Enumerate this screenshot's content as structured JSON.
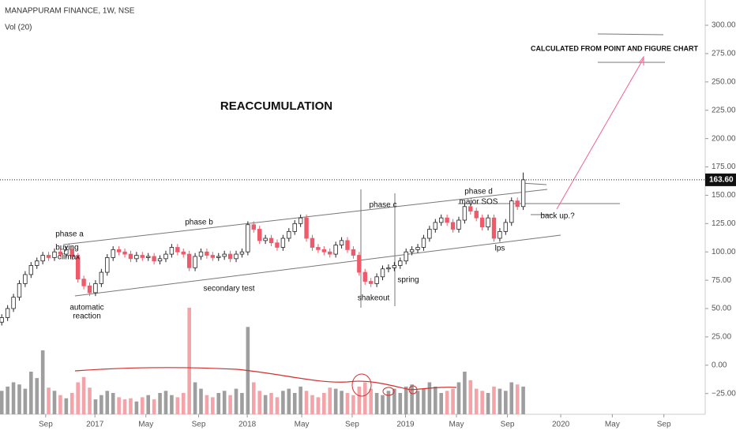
{
  "chart_data": {
    "type": "candlestick",
    "title": "MANAPPURAM FINANCE, 1W, NSE",
    "subtitle": "Vol (20)",
    "ylim": [
      -43.3,
      322.3
    ],
    "yticks": [
      {
        "value": 300,
        "label": "300.00"
      },
      {
        "value": 275,
        "label": "275.00"
      },
      {
        "value": 250,
        "label": "250.00"
      },
      {
        "value": 225,
        "label": "225.00"
      },
      {
        "value": 200,
        "label": "200.00"
      },
      {
        "value": 175,
        "label": "175.00"
      },
      {
        "value": 150,
        "label": "150.00"
      },
      {
        "value": 125,
        "label": "125.00"
      },
      {
        "value": 100,
        "label": "100.00"
      },
      {
        "value": 75,
        "label": "75.00"
      },
      {
        "value": 50,
        "label": "50.00"
      },
      {
        "value": 25,
        "label": "25.00"
      },
      {
        "value": 0,
        "label": "0.00"
      },
      {
        "value": -25,
        "label": "−25.00"
      }
    ],
    "xlim": [
      -0.3,
      118.3
    ],
    "xticks": [
      {
        "value": 7.5,
        "label": "Sep"
      },
      {
        "value": 15.9,
        "label": "2017"
      },
      {
        "value": 24.6,
        "label": "May"
      },
      {
        "value": 33.6,
        "label": "Sep"
      },
      {
        "value": 41.9,
        "label": "2018"
      },
      {
        "value": 51.2,
        "label": "May"
      },
      {
        "value": 59.8,
        "label": "Sep"
      },
      {
        "value": 68.9,
        "label": "2019"
      },
      {
        "value": 77.6,
        "label": "May"
      },
      {
        "value": 86.3,
        "label": "Sep"
      },
      {
        "value": 95.4,
        "label": "2020"
      },
      {
        "value": 104.2,
        "label": "May"
      },
      {
        "value": 113,
        "label": "Sep"
      }
    ],
    "up_color": "#ffffff",
    "down_color": "#ef5a6a",
    "vol_up_color": "#9e9e9e",
    "vol_down_color": "#f4a3a8",
    "open": [
      38,
      42,
      50,
      60,
      72,
      80,
      88,
      92,
      97,
      95,
      100,
      98,
      102,
      96,
      76,
      70,
      64,
      72,
      82,
      95,
      102,
      100,
      98,
      94,
      97,
      95,
      96,
      92,
      94,
      98,
      104,
      100,
      98,
      86,
      96,
      100,
      97,
      95,
      96,
      98,
      94,
      98,
      100,
      124,
      120,
      110,
      112,
      108,
      104,
      112,
      118,
      125,
      130,
      112,
      104,
      102,
      100,
      98,
      106,
      110,
      102,
      97,
      82,
      74,
      72,
      78,
      85,
      86,
      88,
      92,
      100,
      102,
      104,
      112,
      120,
      126,
      130,
      126,
      120,
      128,
      140,
      136,
      130,
      122,
      130,
      112,
      118,
      126,
      145,
      140
    ],
    "high": [
      45,
      53,
      63,
      75,
      83,
      91,
      95,
      100,
      100,
      103,
      103,
      105,
      105,
      99,
      79,
      73,
      75,
      85,
      98,
      105,
      105,
      103,
      101,
      100,
      100,
      99,
      99,
      97,
      101,
      107,
      107,
      103,
      101,
      99,
      103,
      103,
      100,
      99,
      101,
      101,
      101,
      103,
      127,
      127,
      123,
      115,
      115,
      111,
      115,
      121,
      128,
      133,
      133,
      115,
      107,
      105,
      103,
      109,
      113,
      113,
      105,
      100,
      85,
      77,
      81,
      88,
      89,
      91,
      95,
      103,
      105,
      107,
      115,
      123,
      129,
      133,
      133,
      129,
      131,
      143,
      143,
      139,
      133,
      133,
      133,
      121,
      129,
      148,
      148,
      170
    ],
    "low": [
      35,
      39,
      47,
      57,
      69,
      77,
      85,
      89,
      92,
      92,
      95,
      95,
      93,
      73,
      67,
      61,
      61,
      69,
      79,
      92,
      97,
      95,
      91,
      91,
      92,
      92,
      89,
      89,
      91,
      95,
      97,
      95,
      83,
      83,
      93,
      94,
      92,
      92,
      93,
      91,
      91,
      95,
      97,
      117,
      107,
      107,
      105,
      101,
      101,
      109,
      115,
      122,
      109,
      101,
      99,
      97,
      95,
      95,
      103,
      99,
      94,
      79,
      71,
      69,
      69,
      75,
      82,
      83,
      85,
      89,
      97,
      99,
      101,
      109,
      117,
      123,
      123,
      117,
      117,
      125,
      133,
      127,
      119,
      119,
      109,
      109,
      115,
      123,
      137,
      137
    ],
    "close": [
      42,
      50,
      60,
      72,
      80,
      88,
      92,
      97,
      95,
      100,
      98,
      102,
      96,
      76,
      70,
      64,
      72,
      82,
      95,
      102,
      100,
      98,
      94,
      97,
      95,
      96,
      92,
      94,
      98,
      104,
      100,
      98,
      86,
      96,
      100,
      97,
      95,
      96,
      98,
      94,
      98,
      100,
      124,
      120,
      110,
      112,
      108,
      104,
      112,
      118,
      125,
      130,
      112,
      104,
      102,
      100,
      98,
      106,
      110,
      102,
      97,
      82,
      74,
      72,
      78,
      85,
      86,
      88,
      92,
      100,
      102,
      104,
      112,
      120,
      126,
      130,
      126,
      120,
      128,
      140,
      136,
      130,
      122,
      130,
      112,
      118,
      126,
      145,
      140,
      163.6
    ],
    "volume": [
      22,
      26,
      30,
      28,
      24,
      40,
      34,
      60,
      25,
      22,
      18,
      15,
      20,
      30,
      35,
      25,
      14,
      18,
      22,
      20,
      16,
      14,
      15,
      12,
      16,
      18,
      14,
      20,
      22,
      18,
      16,
      20,
      100,
      30,
      24,
      18,
      16,
      20,
      22,
      18,
      24,
      20,
      82,
      30,
      22,
      18,
      20,
      16,
      22,
      24,
      20,
      26,
      22,
      18,
      16,
      20,
      25,
      24,
      22,
      20,
      18,
      26,
      30,
      24,
      20,
      18,
      22,
      24,
      20,
      26,
      28,
      22,
      24,
      30,
      26,
      20,
      22,
      24,
      30,
      40,
      32,
      24,
      22,
      20,
      26,
      24,
      22,
      30,
      28,
      26
    ],
    "last_price": {
      "value": 163.6,
      "label": "163.60"
    },
    "annotations": [
      "REACCUMULATION",
      "CALCULATED FROM POINT AND FIGURE CHART",
      "phase a",
      "buying",
      "climax",
      "automatic",
      "reaction",
      "phase b",
      "secondary test",
      "phase c",
      "shakeout",
      "spring",
      "phase d",
      "major SOS",
      "lps",
      "back up.?"
    ]
  }
}
